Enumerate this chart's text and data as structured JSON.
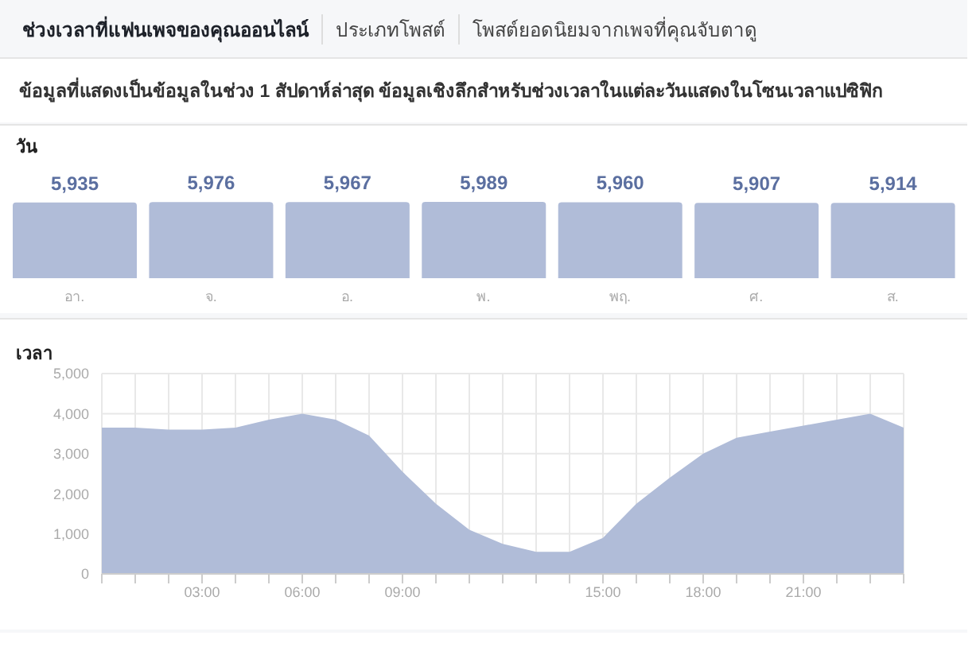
{
  "chart_data": [
    {
      "type": "bar",
      "title": "วัน",
      "annotations": [
        "ช่วงเวลาที่แฟนเพจของคุณออนไลน์",
        "ประเภทโพสต์",
        "โพสต์ยอดนิยมจากเพจที่คุณจับตาดู",
        "ข้อมูลที่แสดงเป็นข้อมูลในช่วง 1 สัปดาห์ล่าสุด ข้อมูลเชิงลึกสำหรับช่วงเวลาในแต่ละวันแสดงในโซนเวลาแปซิฟิก"
      ],
      "categories": [
        "อา.",
        "จ.",
        "อ.",
        "พ.",
        "พฤ.",
        "ศ.",
        "ส."
      ],
      "values": [
        5935,
        5976,
        5967,
        5989,
        5960,
        5907,
        5914
      ],
      "value_labels": [
        "5,935",
        "5,976",
        "5,967",
        "5,989",
        "5,960",
        "5,907",
        "5,914"
      ],
      "color": "#b0bcd8"
    },
    {
      "type": "area",
      "title": "เวลา",
      "x": [
        0,
        1,
        2,
        3,
        4,
        5,
        6,
        7,
        8,
        9,
        10,
        11,
        12,
        13,
        14,
        15,
        16,
        17,
        18,
        19,
        20,
        21,
        22,
        23,
        24
      ],
      "values": [
        3650,
        3650,
        3600,
        3600,
        3650,
        3850,
        4000,
        3850,
        3450,
        2550,
        1750,
        1100,
        750,
        550,
        550,
        900,
        1750,
        2400,
        3000,
        3400,
        3550,
        3700,
        3850,
        4000,
        3650
      ],
      "color": "#b0bcd8",
      "xlim": [
        0,
        24
      ],
      "xticks": [
        {
          "value": 0,
          "label": null
        },
        {
          "value": 1,
          "label": null
        },
        {
          "value": 2,
          "label": null
        },
        {
          "value": 3,
          "label": "03:00"
        },
        {
          "value": 4,
          "label": null
        },
        {
          "value": 5,
          "label": null
        },
        {
          "value": 6,
          "label": "06:00"
        },
        {
          "value": 7,
          "label": null
        },
        {
          "value": 8,
          "label": null
        },
        {
          "value": 9,
          "label": "09:00"
        },
        {
          "value": 10,
          "label": null
        },
        {
          "value": 11,
          "label": null
        },
        {
          "value": 12,
          "label": null
        },
        {
          "value": 13,
          "label": null
        },
        {
          "value": 14,
          "label": null
        },
        {
          "value": 15,
          "label": "15:00"
        },
        {
          "value": 16,
          "label": null
        },
        {
          "value": 17,
          "label": null
        },
        {
          "value": 18,
          "label": "18:00"
        },
        {
          "value": 19,
          "label": null
        },
        {
          "value": 20,
          "label": null
        },
        {
          "value": 21,
          "label": "21:00"
        },
        {
          "value": 22,
          "label": null
        },
        {
          "value": 23,
          "label": null
        },
        {
          "value": 24,
          "label": null
        }
      ],
      "ylim": [
        0,
        5000
      ],
      "yticks": [
        0,
        {
          "value": 1000,
          "label": "1,000"
        },
        {
          "value": 2000,
          "label": "2,000"
        },
        {
          "value": 3000,
          "label": "3,000"
        },
        {
          "value": 4000,
          "label": "4,000"
        },
        {
          "value": 5000,
          "label": "5,000"
        }
      ],
      "grid": true
    }
  ]
}
